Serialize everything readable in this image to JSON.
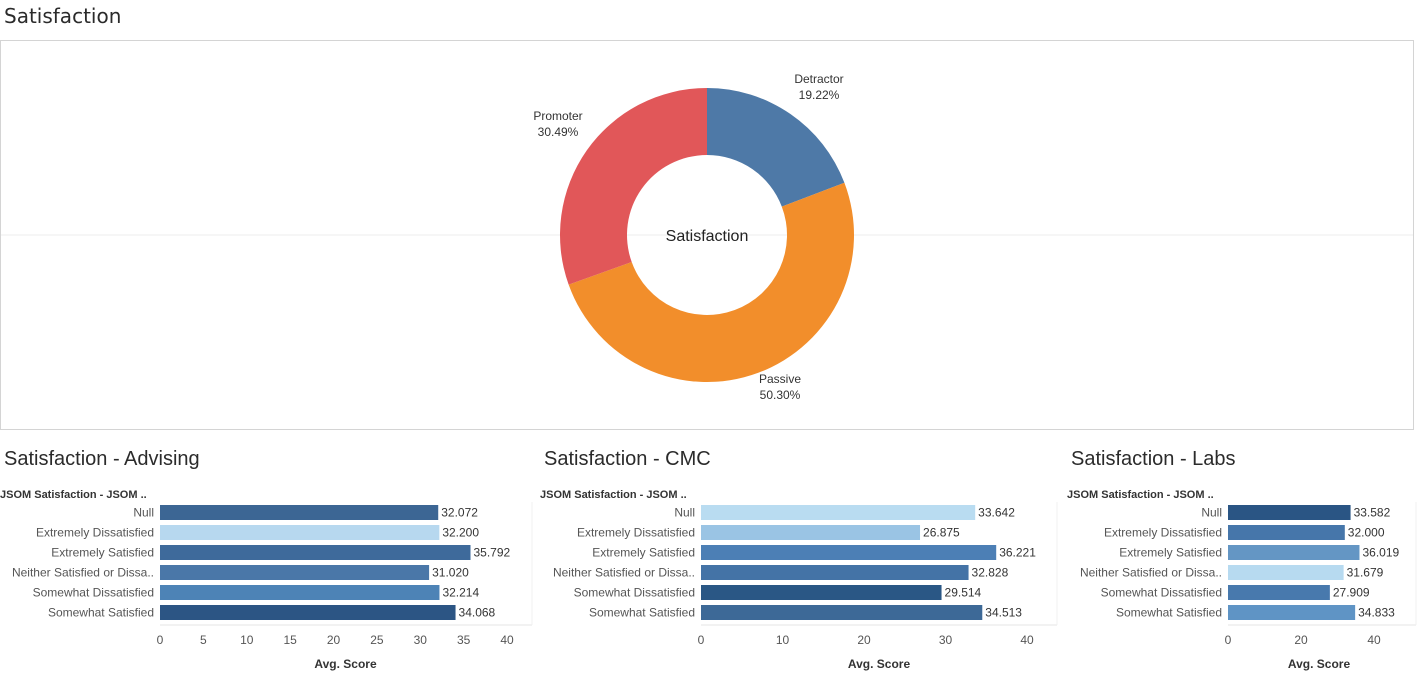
{
  "page": {
    "title": "Satisfaction"
  },
  "chart_data": [
    {
      "type": "pie",
      "title": "",
      "center_label": "Satisfaction",
      "donut": true,
      "slices": [
        {
          "label": "Detractor",
          "value": 19.22,
          "value_label": "19.22%",
          "color": "#4e79a7"
        },
        {
          "label": "Passive",
          "value": 50.3,
          "value_label": "50.30%",
          "color": "#f28e2b"
        },
        {
          "label": "Promoter",
          "value": 30.49,
          "value_label": "30.49%",
          "color": "#e15759"
        }
      ]
    },
    {
      "type": "bar",
      "orientation": "horizontal",
      "title": "Satisfaction - Advising",
      "row_header": "JSOM Satisfaction - JSOM ..",
      "categories": [
        "Null",
        "Extremely Dissatisfied",
        "Extremely Satisfied",
        "Neither Satisfied or Dissa..",
        "Somewhat Dissatisfied",
        "Somewhat Satisfied"
      ],
      "values": [
        32.072,
        32.2,
        35.792,
        31.02,
        32.214,
        34.068
      ],
      "value_labels": [
        "32.072",
        "32.200",
        "35.792",
        "31.020",
        "32.214",
        "34.068"
      ],
      "colors": [
        "#3c6694",
        "#b7d8ef",
        "#3e6a9b",
        "#4a77a8",
        "#4d83b6",
        "#2c5584"
      ],
      "xlabel": "Avg. Score",
      "xlim": [
        0,
        40
      ],
      "xticks": [
        "0",
        "5",
        "10",
        "15",
        "20",
        "25",
        "30",
        "35",
        "40"
      ]
    },
    {
      "type": "bar",
      "orientation": "horizontal",
      "title": "Satisfaction - CMC",
      "row_header": "JSOM Satisfaction - JSOM ..",
      "categories": [
        "Null",
        "Extremely Dissatisfied",
        "Extremely Satisfied",
        "Neither Satisfied or Dissa..",
        "Somewhat Dissatisfied",
        "Somewhat Satisfied"
      ],
      "values": [
        33.642,
        26.875,
        36.221,
        32.828,
        29.514,
        34.513
      ],
      "value_labels": [
        "33.642",
        "26.875",
        "36.221",
        "32.828",
        "29.514",
        "34.513"
      ],
      "colors": [
        "#b9dcf1",
        "#9ac4e4",
        "#4c7fb5",
        "#4473a6",
        "#2a5785",
        "#3d6997"
      ],
      "xlabel": "Avg. Score",
      "xlim": [
        0,
        40
      ],
      "xticks": [
        "0",
        "10",
        "20",
        "30",
        "40"
      ]
    },
    {
      "type": "bar",
      "orientation": "horizontal",
      "title": "Satisfaction - Labs",
      "row_header": "JSOM Satisfaction - JSOM ..",
      "categories": [
        "Null",
        "Extremely Dissatisfied",
        "Extremely Satisfied",
        "Neither Satisfied or Dissa..",
        "Somewhat Dissatisfied",
        "Somewhat Satisfied"
      ],
      "values": [
        33.582,
        32.0,
        36.019,
        31.679,
        27.909,
        34.833
      ],
      "value_labels": [
        "33.582",
        "32.000",
        "36.019",
        "31.679",
        "27.909",
        "34.833"
      ],
      "colors": [
        "#2a5584",
        "#4676aa",
        "#6496c4",
        "#b7daf0",
        "#4879ad",
        "#5f94c5"
      ],
      "xlabel": "Avg. Score",
      "xlim": [
        0,
        40
      ],
      "xticks": [
        "0",
        "20",
        "40"
      ]
    }
  ]
}
